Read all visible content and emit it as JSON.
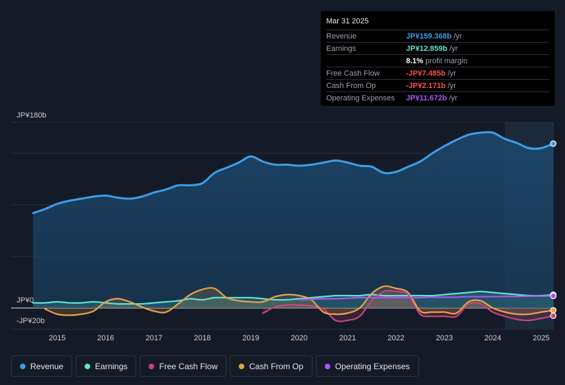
{
  "tooltip": {
    "date": "Mar 31 2025",
    "rows": [
      {
        "label": "Revenue",
        "value": "JP¥159.368b",
        "unit": "/yr",
        "color": "#3b9eea"
      },
      {
        "label": "Earnings",
        "value": "JP¥12.859b",
        "unit": "/yr",
        "color": "#5fe3cf"
      },
      {
        "label": "",
        "value": "8.1%",
        "unit": "profit margin",
        "color": "#ffffff"
      },
      {
        "label": "Free Cash Flow",
        "value": "-JP¥7.485b",
        "unit": "/yr",
        "color": "#ff4d4d"
      },
      {
        "label": "Cash From Op",
        "value": "-JP¥2.171b",
        "unit": "/yr",
        "color": "#ff4d4d"
      },
      {
        "label": "Operating Expenses",
        "value": "JP¥11.672b",
        "unit": "/yr",
        "color": "#a855f7"
      }
    ]
  },
  "legend": [
    {
      "label": "Revenue",
      "color": "#3b9eea"
    },
    {
      "label": "Earnings",
      "color": "#5fe3cf"
    },
    {
      "label": "Free Cash Flow",
      "color": "#c8447a"
    },
    {
      "label": "Cash From Op",
      "color": "#e8a24a"
    },
    {
      "label": "Operating Expenses",
      "color": "#a855f7"
    }
  ],
  "chart_data": {
    "type": "line",
    "title": "",
    "xlabel": "",
    "ylabel": "",
    "y_axis_labels": [
      "JP¥180b",
      "JP¥0",
      "-JP¥20b"
    ],
    "ylim": [
      -20,
      180
    ],
    "xlim": [
      2014.5,
      2025.25
    ],
    "x_ticks": [
      "2015",
      "2016",
      "2017",
      "2018",
      "2019",
      "2020",
      "2021",
      "2022",
      "2023",
      "2024",
      "2025"
    ],
    "forecast_shade_start": 2024.25,
    "series": [
      {
        "name": "Revenue",
        "color": "#3b9eea",
        "fill": true,
        "x": [
          2014.5,
          2014.75,
          2015.0,
          2015.25,
          2015.5,
          2015.75,
          2016.0,
          2016.25,
          2016.5,
          2016.75,
          2017.0,
          2017.25,
          2017.5,
          2017.75,
          2018.0,
          2018.25,
          2018.5,
          2018.75,
          2019.0,
          2019.25,
          2019.5,
          2019.75,
          2020.0,
          2020.25,
          2020.5,
          2020.75,
          2021.0,
          2021.25,
          2021.5,
          2021.75,
          2022.0,
          2022.25,
          2022.5,
          2022.75,
          2023.0,
          2023.25,
          2023.5,
          2023.75,
          2024.0,
          2024.25,
          2024.5,
          2024.75,
          2025.0,
          2025.25
        ],
        "values": [
          92,
          96,
          101,
          104,
          106,
          108,
          109,
          107,
          106,
          108,
          112,
          115,
          119,
          119,
          121,
          131,
          136,
          141,
          147,
          142,
          139,
          139,
          138,
          139,
          141,
          143,
          141,
          138,
          137,
          131,
          132,
          137,
          142,
          150,
          157,
          163,
          168,
          170,
          170,
          164,
          160,
          155,
          155,
          159.4
        ]
      },
      {
        "name": "Earnings",
        "color": "#5fe3cf",
        "fill": true,
        "x": [
          2014.5,
          2014.75,
          2015.0,
          2015.25,
          2015.5,
          2015.75,
          2016.0,
          2016.25,
          2016.5,
          2016.75,
          2017.0,
          2017.25,
          2017.5,
          2017.75,
          2018.0,
          2018.25,
          2018.5,
          2018.75,
          2019.0,
          2019.25,
          2019.5,
          2019.75,
          2020.0,
          2020.25,
          2020.5,
          2020.75,
          2021.0,
          2021.25,
          2021.5,
          2021.75,
          2022.0,
          2022.25,
          2022.5,
          2022.75,
          2023.0,
          2023.25,
          2023.5,
          2023.75,
          2024.0,
          2024.25,
          2024.5,
          2024.75,
          2025.0,
          2025.25
        ],
        "values": [
          5,
          5,
          6,
          5,
          5,
          6,
          5,
          4,
          4,
          4,
          5,
          6,
          7,
          9,
          8,
          10,
          10,
          10,
          10,
          9,
          8,
          8,
          9,
          10,
          11,
          12,
          12,
          12,
          13,
          12,
          12,
          12,
          12,
          12,
          13,
          14,
          15,
          16,
          15,
          14,
          13,
          12,
          12,
          12.9
        ]
      },
      {
        "name": "Free Cash Flow",
        "color": "#c8447a",
        "fill": true,
        "x": [
          2019.25,
          2019.5,
          2019.75,
          2020.0,
          2020.25,
          2020.5,
          2020.75,
          2021.0,
          2021.25,
          2021.5,
          2021.75,
          2022.0,
          2022.25,
          2022.5,
          2022.75,
          2023.0,
          2023.25,
          2023.5,
          2023.75,
          2024.0,
          2024.25,
          2024.5,
          2024.75,
          2025.0,
          2025.25
        ],
        "values": [
          -5,
          1,
          3,
          3,
          2,
          -1,
          -12,
          -12,
          -8,
          7,
          16,
          16,
          13,
          -6,
          -8,
          -8,
          -8,
          4,
          4,
          -4,
          -8,
          -11,
          -12,
          -10,
          -7.5
        ]
      },
      {
        "name": "Cash From Op",
        "color": "#e8a24a",
        "fill": true,
        "x": [
          2014.75,
          2015.0,
          2015.25,
          2015.5,
          2015.75,
          2016.0,
          2016.25,
          2016.5,
          2016.75,
          2017.0,
          2017.25,
          2017.5,
          2017.75,
          2018.0,
          2018.25,
          2018.5,
          2018.75,
          2019.0,
          2019.25,
          2019.5,
          2019.75,
          2020.0,
          2020.25,
          2020.5,
          2020.75,
          2021.0,
          2021.25,
          2021.5,
          2021.75,
          2022.0,
          2022.25,
          2022.5,
          2022.75,
          2023.0,
          2023.25,
          2023.5,
          2023.75,
          2024.0,
          2024.25,
          2024.5,
          2024.75,
          2025.0,
          2025.25
        ],
        "values": [
          -1,
          -6,
          -7,
          -6,
          -3,
          6,
          9,
          6,
          1,
          -3,
          -4,
          4,
          13,
          18,
          19,
          10,
          7,
          6,
          6,
          11,
          13,
          12,
          8,
          -4,
          -6,
          -5,
          0,
          14,
          21,
          19,
          15,
          -3,
          -4,
          -4,
          -5,
          6,
          7,
          0,
          -4,
          -6,
          -6,
          -4,
          -2.2
        ]
      },
      {
        "name": "Operating Expenses",
        "color": "#a855f7",
        "fill": false,
        "x": [
          2020.0,
          2020.25,
          2020.5,
          2020.75,
          2021.0,
          2021.25,
          2021.5,
          2021.75,
          2022.0,
          2022.25,
          2022.5,
          2022.75,
          2023.0,
          2023.25,
          2023.5,
          2023.75,
          2024.0,
          2024.25,
          2024.5,
          2024.75,
          2025.0,
          2025.25
        ],
        "values": [
          8,
          8.5,
          9,
          9,
          9.5,
          10,
          10,
          10,
          10,
          10,
          10,
          10.5,
          10.5,
          10.5,
          11,
          11,
          11,
          11.2,
          11.3,
          11.4,
          11.5,
          11.7
        ]
      }
    ]
  }
}
